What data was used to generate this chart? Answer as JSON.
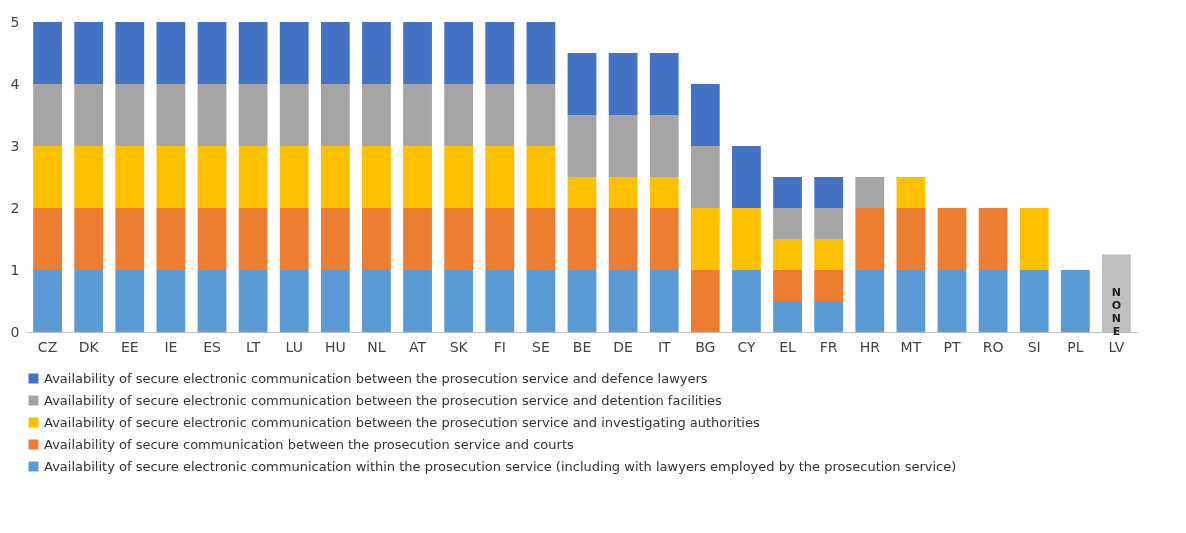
{
  "chart_data": {
    "type": "bar",
    "stacked": true,
    "categories": [
      "CZ",
      "DK",
      "EE",
      "IE",
      "ES",
      "LT",
      "LU",
      "HU",
      "NL",
      "AT",
      "SK",
      "FI",
      "SE",
      "BE",
      "DE",
      "IT",
      "BG",
      "CY",
      "EL",
      "FR",
      "HR",
      "MT",
      "PT",
      "RO",
      "SI",
      "PL",
      "LV"
    ],
    "series": [
      {
        "name": "Availability of secure electronic communication within the prosecution service (including with lawyers employed by the prosecution service)",
        "color": "#5b9bd5",
        "values": [
          1,
          1,
          1,
          1,
          1,
          1,
          1,
          1,
          1,
          1,
          1,
          1,
          1,
          1,
          1,
          1,
          0,
          1,
          0.5,
          0.5,
          1,
          1,
          1,
          1,
          1,
          1,
          null
        ]
      },
      {
        "name": "Availability of secure communication between the prosecution service and courts",
        "color": "#ed7d31",
        "values": [
          1,
          1,
          1,
          1,
          1,
          1,
          1,
          1,
          1,
          1,
          1,
          1,
          1,
          1,
          1,
          1,
          1,
          0,
          0.5,
          0.5,
          1,
          1,
          1,
          1,
          0,
          0,
          null
        ]
      },
      {
        "name": "Availability of secure electronic communication between the prosecution service and investigating authorities",
        "color": "#ffc000",
        "values": [
          1,
          1,
          1,
          1,
          1,
          1,
          1,
          1,
          1,
          1,
          1,
          1,
          1,
          0.5,
          0.5,
          0.5,
          1,
          1,
          0.5,
          0.5,
          0,
          0.5,
          0,
          0,
          1,
          0,
          null
        ]
      },
      {
        "name": "Availability of secure electronic communication between the prosecution service and detention facilities",
        "color": "#a5a5a5",
        "values": [
          1,
          1,
          1,
          1,
          1,
          1,
          1,
          1,
          1,
          1,
          1,
          1,
          1,
          1,
          1,
          1,
          1,
          0,
          0.5,
          0.5,
          0.5,
          0,
          0,
          0,
          0,
          0,
          null
        ]
      },
      {
        "name": "Availability of secure electronic communication between the prosecution service and defence lawyers",
        "color": "#4472c4",
        "values": [
          1,
          1,
          1,
          1,
          1,
          1,
          1,
          1,
          1,
          1,
          1,
          1,
          1,
          1,
          1,
          1,
          1,
          1,
          0.5,
          0.5,
          0,
          0,
          0,
          0,
          0,
          0,
          null
        ]
      },
      {
        "color": "#bfbfbf",
        "values": [
          null,
          null,
          null,
          null,
          null,
          null,
          null,
          null,
          null,
          null,
          null,
          null,
          null,
          null,
          null,
          null,
          null,
          null,
          null,
          null,
          null,
          null,
          null,
          null,
          null,
          null,
          1.25
        ]
      }
    ],
    "ylim": [
      0,
      5
    ],
    "yticks": [
      0,
      1,
      2,
      3,
      4,
      5
    ],
    "grid": false,
    "legend": "bottom",
    "annotations": [
      "NONE"
    ]
  }
}
